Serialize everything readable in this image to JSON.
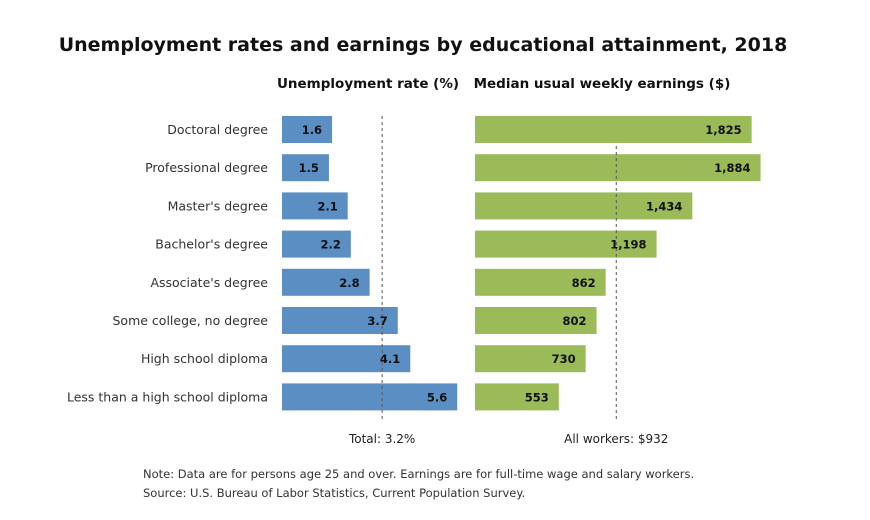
{
  "chart_data": {
    "type": "bar",
    "title": "Unemployment rates and earnings by educational attainment, 2018",
    "categories": [
      "Doctoral degree",
      "Professional degree",
      "Master's degree",
      "Bachelor's degree",
      "Associate's degree",
      "Some college, no degree",
      "High school diploma",
      "Less than a high school diploma"
    ],
    "panels": [
      {
        "id": "unemployment",
        "subtitle": "Unemployment rate (%)",
        "values": [
          1.6,
          1.5,
          2.1,
          2.2,
          2.8,
          3.7,
          4.1,
          5.6
        ],
        "value_labels": [
          "1.6",
          "1.5",
          "2.1",
          "2.2",
          "2.8",
          "3.7",
          "4.1",
          "5.6"
        ],
        "color": "#5b8fc3",
        "reference_value": 3.2,
        "reference_label": "Total: 3.2%",
        "xlim": [
          0,
          6.2
        ]
      },
      {
        "id": "earnings",
        "subtitle": "Median usual weekly earnings ($)",
        "values": [
          1825,
          1884,
          1434,
          1198,
          862,
          802,
          730,
          553
        ],
        "value_labels": [
          "1,825",
          "1,884",
          "1,434",
          "1,198",
          "862",
          "802",
          "730",
          "553"
        ],
        "color": "#9bbb59",
        "reference_value": 932,
        "reference_label": "All workers: $932",
        "xlim": [
          0,
          1900
        ]
      }
    ],
    "notes": [
      "Note: Data are for persons age 25 and over. Earnings are for full-time wage and salary workers.",
      "Source: U.S. Bureau of Labor Statistics, Current Population Survey."
    ]
  }
}
